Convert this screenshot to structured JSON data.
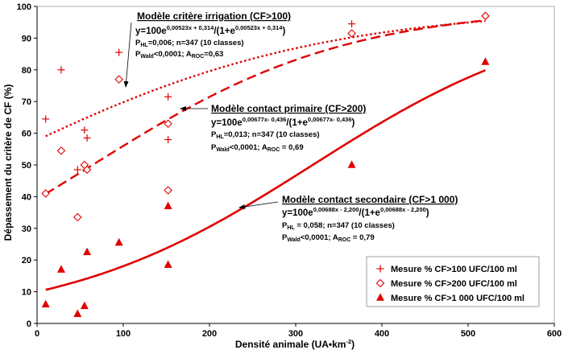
{
  "chart_data": {
    "type": "scatter",
    "xlabel": "Densité animale (UA•km",
    "xlabel_sup": "-2",
    "xlabel_end": ")",
    "ylabel": "Dépassement du critère de CF (%)",
    "xlim": [
      0,
      600
    ],
    "ylim": [
      0,
      100
    ],
    "xticks": [
      0,
      100,
      200,
      300,
      400,
      500,
      600
    ],
    "yticks": [
      0,
      10,
      20,
      30,
      40,
      50,
      60,
      70,
      80,
      90,
      100
    ],
    "grid": false,
    "legend_position": "bottom-right",
    "series": [
      {
        "name": "Mesure % CF>100 UFC/100 ml",
        "marker": "plus",
        "color": "#e00000",
        "points": [
          [
            10,
            64.5
          ],
          [
            28,
            80
          ],
          [
            47,
            48.5
          ],
          [
            55,
            61
          ],
          [
            58,
            58.5
          ],
          [
            95,
            85.5
          ],
          [
            152,
            58
          ],
          [
            152,
            71.5
          ],
          [
            365,
            94.5
          ],
          [
            520,
            97
          ]
        ]
      },
      {
        "name": "Mesure % CF>200 UFC/100 ml",
        "marker": "diamond",
        "color": "#e00000",
        "points": [
          [
            10,
            41
          ],
          [
            28,
            54.5
          ],
          [
            47,
            33.5
          ],
          [
            55,
            50
          ],
          [
            58,
            48.5
          ],
          [
            95,
            77
          ],
          [
            152,
            42
          ],
          [
            152,
            63
          ],
          [
            365,
            91.5
          ],
          [
            520,
            97
          ]
        ]
      },
      {
        "name": "Mesure % CF>1 000 UFC/100 ml",
        "marker": "triangle",
        "color": "#e00000",
        "points": [
          [
            10,
            6
          ],
          [
            28,
            17
          ],
          [
            47,
            3
          ],
          [
            55,
            5.5
          ],
          [
            58,
            22.5
          ],
          [
            95,
            25.5
          ],
          [
            152,
            18.5
          ],
          [
            152,
            37
          ],
          [
            365,
            50
          ],
          [
            520,
            82.5
          ]
        ]
      }
    ],
    "models": [
      {
        "id": "irrigation",
        "style": "dotted",
        "color": "#e00000",
        "coef_a": 0.00523,
        "coef_b": 0.314,
        "x_range": [
          10,
          520
        ],
        "title": "Modèle critère irrigation (CF>100)",
        "eq_prefix": "y=100e",
        "eq_exp": "0,00523x + 0,314",
        "eq_mid": "/(1+e",
        "eq_exp2": "0,00523x + 0,314",
        "eq_end": ")",
        "stat1_a": "P",
        "stat1_sub": "HL",
        "stat1_b": "=0,006; n=347 (10 classes)",
        "stat2_a": "P",
        "stat2_sub": "Wald",
        "stat2_b": "<0,0001; A",
        "stat2_sub2": "ROC",
        "stat2_c": "=0,63"
      },
      {
        "id": "primaire",
        "style": "dashed",
        "color": "#e00000",
        "coef_a": 0.00677,
        "coef_b": -0.436,
        "x_range": [
          10,
          520
        ],
        "title": "Modèle contact primaire (CF>200)",
        "eq_prefix": "y=100e",
        "eq_exp": "0,00677x- 0,436",
        "eq_mid": "/(1+e",
        "eq_exp2": "0,00677x- 0,436",
        "eq_end": ")",
        "stat1_a": "P",
        "stat1_sub": "HL",
        "stat1_b": "=0,013; n=347 (10 classes)",
        "stat2_a": "P",
        "stat2_sub": "Wald",
        "stat2_b": "<0,0001; A",
        "stat2_sub2": "ROC",
        "stat2_c": " = 0,69"
      },
      {
        "id": "secondaire",
        "style": "solid",
        "color": "#e00000",
        "coef_a": 0.00688,
        "coef_b": -2.2,
        "x_range": [
          10,
          520
        ],
        "title": "Modèle contact secondaire (CF>1 000)",
        "eq_prefix": "y=100e",
        "eq_exp": "0,00688x - 2,200",
        "eq_mid": "/(1+e",
        "eq_exp2": "0,00688x - 2,200",
        "eq_end": ")",
        "stat1_a": "P",
        "stat1_sub": "HL",
        "stat1_b": " = 0,058; n=347 (10 classes)",
        "stat2_a": "P",
        "stat2_sub": "Wald",
        "stat2_b": "<0,0001; A",
        "stat2_sub2": "ROC",
        "stat2_c": " = 0,79"
      }
    ]
  }
}
